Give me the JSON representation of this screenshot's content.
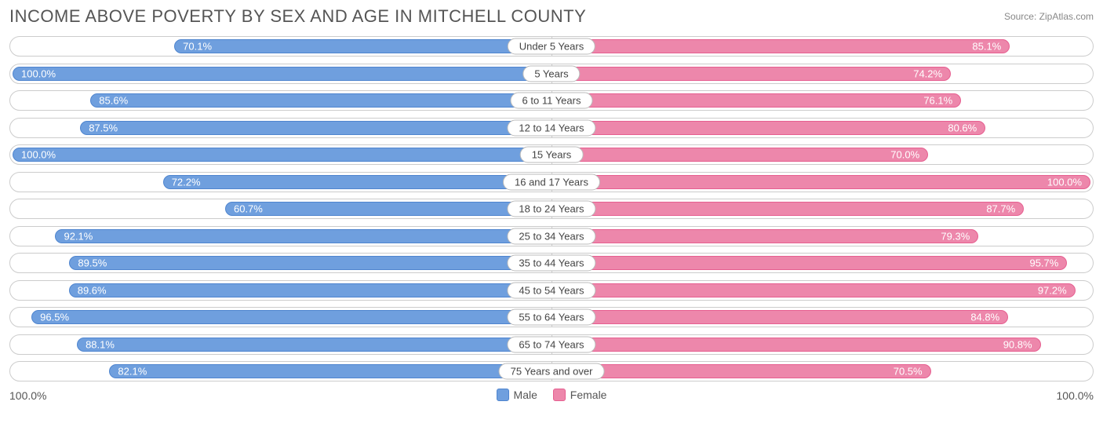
{
  "title": "INCOME ABOVE POVERTY BY SEX AND AGE IN MITCHELL COUNTY",
  "source": "Source: ZipAtlas.com",
  "colors": {
    "male_fill": "#6f9fde",
    "male_border": "#4f85cf",
    "female_fill": "#ed87ab",
    "female_border": "#e65f90",
    "track_border": "#cccccc",
    "text_white": "#ffffff",
    "background": "#ffffff"
  },
  "axis": {
    "left": "100.0%",
    "right": "100.0%",
    "max": 100.0
  },
  "legend": {
    "male": "Male",
    "female": "Female"
  },
  "rows": [
    {
      "category": "Under 5 Years",
      "male": 70.1,
      "female": 85.1,
      "male_label": "70.1%",
      "female_label": "85.1%"
    },
    {
      "category": "5 Years",
      "male": 100.0,
      "female": 74.2,
      "male_label": "100.0%",
      "female_label": "74.2%"
    },
    {
      "category": "6 to 11 Years",
      "male": 85.6,
      "female": 76.1,
      "male_label": "85.6%",
      "female_label": "76.1%"
    },
    {
      "category": "12 to 14 Years",
      "male": 87.5,
      "female": 80.6,
      "male_label": "87.5%",
      "female_label": "80.6%"
    },
    {
      "category": "15 Years",
      "male": 100.0,
      "female": 70.0,
      "male_label": "100.0%",
      "female_label": "70.0%"
    },
    {
      "category": "16 and 17 Years",
      "male": 72.2,
      "female": 100.0,
      "male_label": "72.2%",
      "female_label": "100.0%"
    },
    {
      "category": "18 to 24 Years",
      "male": 60.7,
      "female": 87.7,
      "male_label": "60.7%",
      "female_label": "87.7%"
    },
    {
      "category": "25 to 34 Years",
      "male": 92.1,
      "female": 79.3,
      "male_label": "92.1%",
      "female_label": "79.3%"
    },
    {
      "category": "35 to 44 Years",
      "male": 89.5,
      "female": 95.7,
      "male_label": "89.5%",
      "female_label": "95.7%"
    },
    {
      "category": "45 to 54 Years",
      "male": 89.6,
      "female": 97.2,
      "male_label": "89.6%",
      "female_label": "97.2%"
    },
    {
      "category": "55 to 64 Years",
      "male": 96.5,
      "female": 84.8,
      "male_label": "96.5%",
      "female_label": "84.8%"
    },
    {
      "category": "65 to 74 Years",
      "male": 88.1,
      "female": 90.8,
      "male_label": "88.1%",
      "female_label": "90.8%"
    },
    {
      "category": "75 Years and over",
      "male": 82.1,
      "female": 70.5,
      "male_label": "82.1%",
      "female_label": "70.5%"
    }
  ]
}
